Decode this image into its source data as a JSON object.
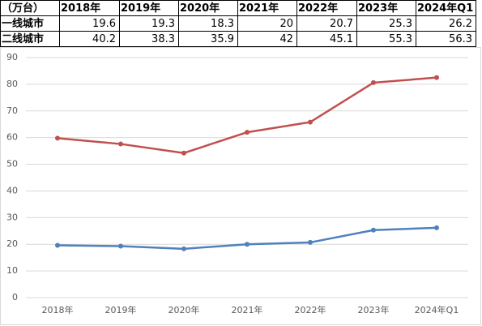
{
  "chart_data": {
    "type": "line",
    "stacked": true,
    "unit_label": "（万台）",
    "categories": [
      "2018年",
      "2019年",
      "2020年",
      "2021年",
      "2022年",
      "2023年",
      "2024年Q1"
    ],
    "series": [
      {
        "name": "一线城市",
        "color": "#4f81bd",
        "values": [
          19.6,
          19.3,
          18.3,
          20,
          20.7,
          25.3,
          26.2
        ]
      },
      {
        "name": "二线城市",
        "color": "#c0504d",
        "values": [
          40.2,
          38.3,
          35.9,
          42,
          45.1,
          55.3,
          56.3
        ]
      }
    ],
    "ylim": [
      0,
      90
    ],
    "yticks": [
      0,
      10,
      20,
      30,
      40,
      50,
      60,
      70,
      80,
      90
    ],
    "grid": true
  }
}
